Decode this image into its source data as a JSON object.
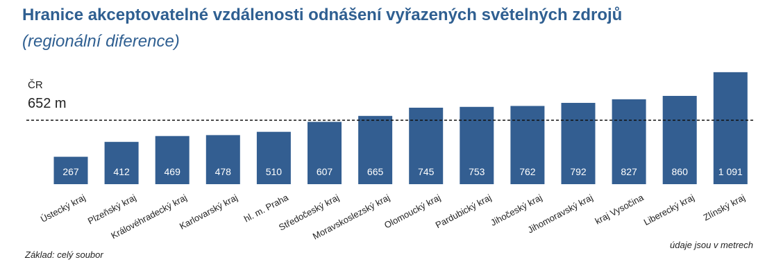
{
  "chart_data": {
    "type": "bar",
    "title": "Hranice akceptovatelné vzdálenosti odnášení vyřazených světelných zdrojů",
    "subtitle": "(regionální diference)",
    "categories": [
      "Ústecký kraj",
      "Plzeňský kraj",
      "Královéhradecký kraj",
      "Karlovarský kraj",
      "hl. m. Praha",
      "Středočeský kraj",
      "Moravskoslezský kraj",
      "Olomoucký kraj",
      "Pardubický kraj",
      "Jihočeský kraj",
      "Jihomoravský kraj",
      "kraj Vysočina",
      "Liberecký kraj",
      "Zlínský kraj"
    ],
    "values": [
      267,
      412,
      469,
      478,
      510,
      607,
      665,
      745,
      753,
      762,
      792,
      827,
      860,
      1091
    ],
    "value_labels": [
      "267",
      "412",
      "469",
      "478",
      "510",
      "607",
      "665",
      "745",
      "753",
      "762",
      "792",
      "827",
      "860",
      "1 091"
    ],
    "reference_line": {
      "label": "ČR",
      "value": 652,
      "value_label": "652 m"
    },
    "ylim": [
      0,
      1100
    ],
    "grid": false,
    "bar_color": "#335e91",
    "note_left": "Základ: celý soubor",
    "note_right": "údaje jsou v metrech"
  }
}
